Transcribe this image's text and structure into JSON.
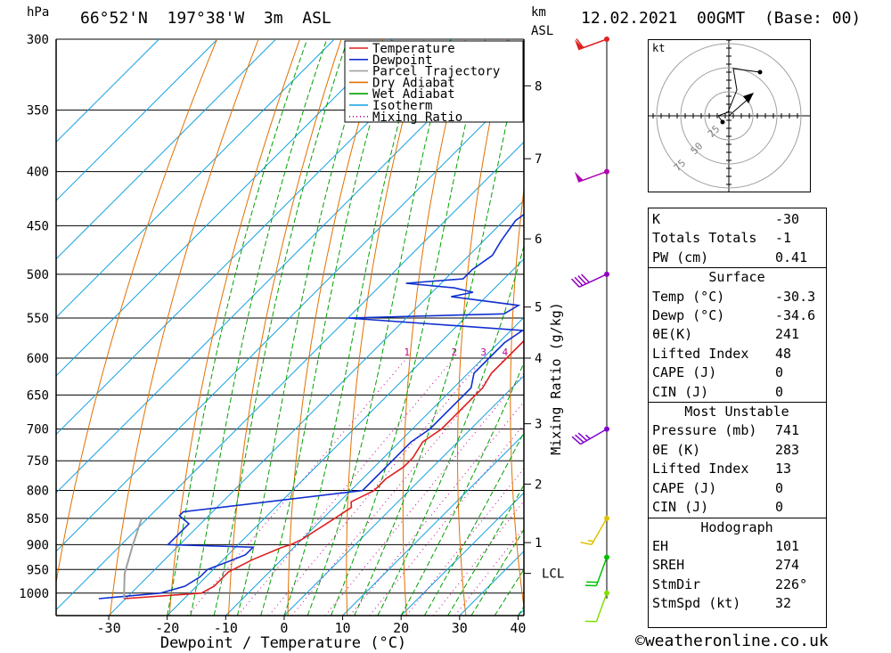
{
  "header": {
    "location": "66°52'N  197°38'W  3m  ASL",
    "datetime": "12.02.2021  00GMT  (Base: 00)",
    "left_unit": "hPa",
    "right_unit_top": "km",
    "right_unit_bottom": "ASL"
  },
  "chart_data": {
    "type": "line",
    "subtype": "skew-T log-p sounding",
    "xlabel": "Dewpoint / Temperature (°C)",
    "ylabel": "hPa",
    "right_axis_label": "Mixing Ratio (g/kg)",
    "x_ticks": [
      -30,
      -20,
      -10,
      0,
      10,
      20,
      30,
      40
    ],
    "xlim": [
      -39,
      41
    ],
    "pressure_ticks": [
      300,
      350,
      400,
      450,
      500,
      550,
      600,
      650,
      700,
      750,
      800,
      850,
      900,
      950,
      1000
    ],
    "plim": [
      300,
      1050
    ],
    "legend": [
      "Temperature",
      "Dewpoint",
      "Parcel Trajectory",
      "Dry Adiabat",
      "Wet Adiabat",
      "Isotherm",
      "Mixing Ratio"
    ],
    "legend_colors": [
      "#e02020",
      "#1030d0",
      "#a0a0a0",
      "#e07000",
      "#00a000",
      "#10a0e0",
      "#c00090"
    ],
    "height_km_labels": [
      {
        "km": "8",
        "p": 332
      },
      {
        "km": "7",
        "p": 389
      },
      {
        "km": "6",
        "p": 463
      },
      {
        "km": "5",
        "p": 537
      },
      {
        "km": "4",
        "p": 600
      },
      {
        "km": "3",
        "p": 692
      },
      {
        "km": "2",
        "p": 789
      },
      {
        "km": "1",
        "p": 896
      },
      {
        "km": "LCL",
        "p": 958
      }
    ],
    "mixing_ratio_labels": [
      "1",
      "2",
      "3",
      "4",
      "6",
      "8",
      "10",
      "15",
      "20",
      "25"
    ],
    "mixing_ratio_values": [
      1,
      2,
      3,
      4,
      6,
      8,
      10,
      15,
      20,
      25
    ],
    "series": [
      {
        "name": "Temperature",
        "points": [
          [
            1012,
            -30.3
          ],
          [
            1000,
            -18
          ],
          [
            985,
            -17
          ],
          [
            955,
            -17
          ],
          [
            930,
            -15
          ],
          [
            905,
            -12
          ],
          [
            900,
            -11
          ],
          [
            890,
            -10
          ],
          [
            850,
            -8
          ],
          [
            830,
            -7
          ],
          [
            820,
            -8
          ],
          [
            800,
            -6
          ],
          [
            780,
            -6
          ],
          [
            760,
            -5
          ],
          [
            745,
            -5
          ],
          [
            720,
            -6
          ],
          [
            700,
            -5
          ],
          [
            680,
            -5
          ],
          [
            660,
            -5
          ],
          [
            640,
            -5
          ],
          [
            620,
            -6
          ],
          [
            600,
            -6
          ],
          [
            580,
            -6
          ],
          [
            565,
            -6
          ],
          [
            552,
            -5
          ],
          [
            540,
            -5
          ],
          [
            525,
            -4
          ],
          [
            510,
            -4
          ],
          [
            490,
            -5
          ],
          [
            470,
            -5
          ],
          [
            450,
            -6
          ],
          [
            430,
            -6
          ],
          [
            410,
            -7
          ],
          [
            390,
            -8
          ],
          [
            375,
            -8
          ],
          [
            360,
            -8
          ],
          [
            345,
            -8
          ],
          [
            330,
            -8
          ],
          [
            315,
            -8
          ],
          [
            300,
            -8
          ]
        ]
      },
      {
        "name": "Dewpoint",
        "points": [
          [
            1012,
            -34.6
          ],
          [
            1000,
            -25
          ],
          [
            985,
            -22
          ],
          [
            965,
            -21
          ],
          [
            950,
            -21
          ],
          [
            935,
            -19
          ],
          [
            920,
            -17
          ],
          [
            905,
            -17
          ],
          [
            900,
            -32
          ],
          [
            880,
            -32
          ],
          [
            860,
            -32
          ],
          [
            845,
            -35
          ],
          [
            838,
            -35
          ],
          [
            800,
            -8
          ],
          [
            780,
            -8
          ],
          [
            760,
            -8
          ],
          [
            745,
            -8
          ],
          [
            720,
            -8
          ],
          [
            700,
            -7
          ],
          [
            680,
            -7
          ],
          [
            660,
            -7
          ],
          [
            640,
            -7
          ],
          [
            620,
            -9
          ],
          [
            600,
            -9
          ],
          [
            580,
            -9
          ],
          [
            565,
            -8
          ],
          [
            550,
            -40
          ],
          [
            545,
            -14
          ],
          [
            535,
            -13
          ],
          [
            525,
            -26
          ],
          [
            520,
            -23
          ],
          [
            515,
            -27
          ],
          [
            510,
            -36
          ],
          [
            505,
            -27
          ],
          [
            495,
            -27
          ],
          [
            480,
            -26
          ],
          [
            465,
            -27
          ],
          [
            445,
            -28
          ],
          [
            430,
            -27
          ],
          [
            420,
            -25
          ],
          [
            412,
            -24
          ],
          [
            408,
            -28
          ],
          [
            402,
            -26
          ],
          [
            395,
            -23
          ],
          [
            385,
            -21
          ],
          [
            375,
            -18
          ],
          [
            365,
            -17
          ],
          [
            355,
            -15
          ],
          [
            345,
            -14
          ],
          [
            335,
            -12
          ],
          [
            325,
            -12
          ],
          [
            315,
            -11
          ],
          [
            300,
            -11
          ]
        ]
      },
      {
        "name": "Parcel Trajectory",
        "points": [
          [
            1012,
            -30.3
          ],
          [
            958,
            -34.5
          ],
          [
            900,
            -38
          ],
          [
            850,
            -41
          ]
        ]
      }
    ]
  },
  "hodograph": {
    "unit": "kt",
    "ring_labels": [
      "25",
      "50",
      "75"
    ]
  },
  "wind_barbs": [
    {
      "p": 300,
      "color": "#e02020",
      "dir": 250,
      "speed": 60
    },
    {
      "p": 400,
      "color": "#b000b0",
      "dir": 250,
      "speed": 50
    },
    {
      "p": 500,
      "color": "#9000c0",
      "dir": 245,
      "speed": 40
    },
    {
      "p": 700,
      "color": "#8000d0",
      "dir": 240,
      "speed": 35
    },
    {
      "p": 850,
      "color": "#e0c000",
      "dir": 210,
      "speed": 15
    },
    {
      "p": 925,
      "color": "#00c000",
      "dir": 200,
      "speed": 20
    },
    {
      "p": 1000,
      "color": "#80e000",
      "dir": 200,
      "speed": 10
    }
  ],
  "indices": {
    "basic": [
      {
        "label": "K",
        "value": "-30"
      },
      {
        "label": "Totals Totals",
        "value": "-1"
      },
      {
        "label": "PW (cm)",
        "value": "0.41"
      }
    ],
    "surface_title": "Surface",
    "surface": [
      {
        "label": "Temp (°C)",
        "value": "-30.3"
      },
      {
        "label": "Dewp (°C)",
        "value": "-34.6"
      },
      {
        "label": "θE(K)",
        "value": "241"
      },
      {
        "label": "Lifted Index",
        "value": "48"
      },
      {
        "label": "CAPE (J)",
        "value": "0"
      },
      {
        "label": "CIN (J)",
        "value": "0"
      }
    ],
    "most_unstable_title": "Most Unstable",
    "most_unstable": [
      {
        "label": "Pressure (mb)",
        "value": "741"
      },
      {
        "label": "θE (K)",
        "value": "283"
      },
      {
        "label": "Lifted Index",
        "value": "13"
      },
      {
        "label": "CAPE (J)",
        "value": "0"
      },
      {
        "label": "CIN (J)",
        "value": "0"
      }
    ],
    "hodograph_title": "Hodograph",
    "hodograph": [
      {
        "label": "EH",
        "value": "101"
      },
      {
        "label": "SREH",
        "value": "274"
      },
      {
        "label": "StmDir",
        "value": "226°"
      },
      {
        "label": "StmSpd (kt)",
        "value": "32"
      }
    ]
  },
  "footer": {
    "copyright": "©weatheronline.co.uk"
  }
}
